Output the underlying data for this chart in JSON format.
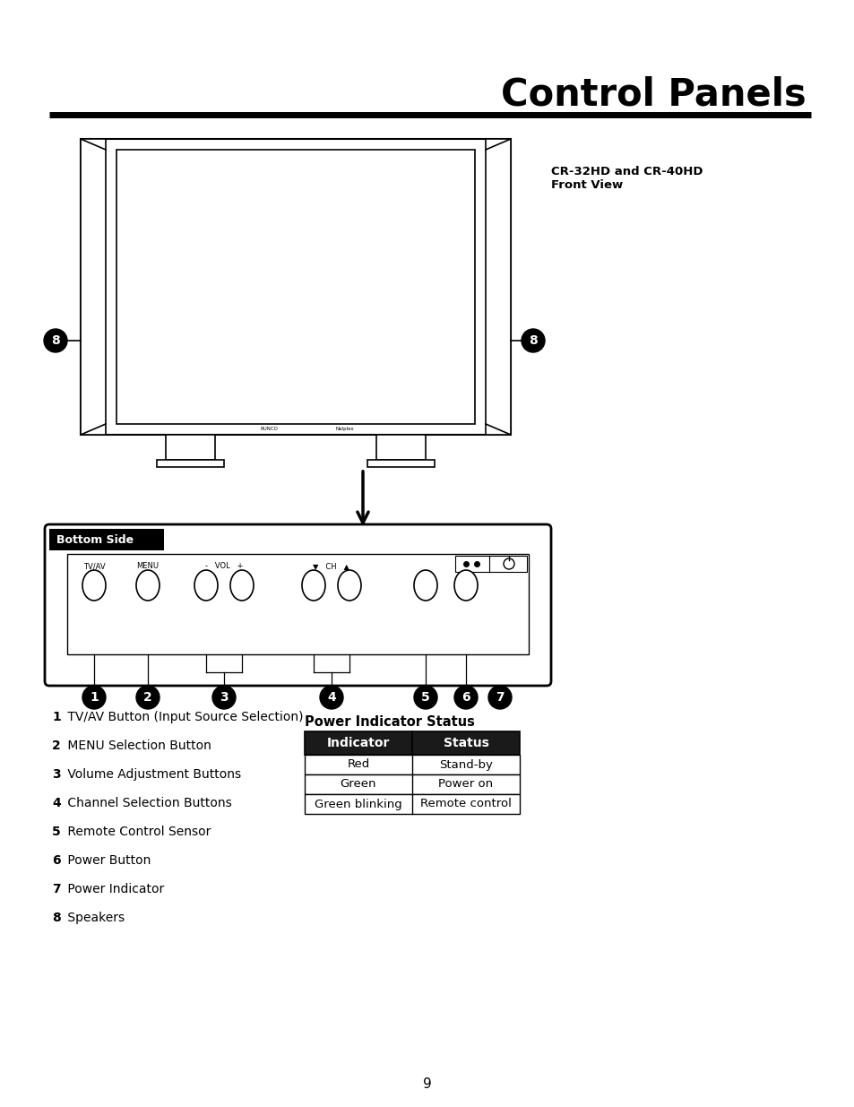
{
  "title": "Control Panels",
  "title_fontsize": 30,
  "title_fontweight": "bold",
  "page_number": "9",
  "bg_color": "#ffffff",
  "line_color": "#000000",
  "sidebar_label": "CR-32HD and CR-40HD\nFront View",
  "bottom_side_label": "Bottom Side",
  "numbered_items": [
    {
      "bold": "1",
      "text": " TV/AV Button (Input Source Selection)"
    },
    {
      "bold": "2",
      "text": " MENU Selection Button"
    },
    {
      "bold": "3",
      "text": " Volume Adjustment Buttons"
    },
    {
      "bold": "4",
      "text": " Channel Selection Buttons"
    },
    {
      "bold": "5",
      "text": " Remote Control Sensor"
    },
    {
      "bold": "6",
      "text": " Power Button"
    },
    {
      "bold": "7",
      "text": " Power Indicator"
    },
    {
      "bold": "8",
      "text": " Speakers"
    }
  ],
  "power_indicator_title": "Power Indicator Status",
  "table_header": [
    "Indicator",
    "Status"
  ],
  "table_rows": [
    [
      "Red\nGreen\nGreen blinking",
      "Stand-by\nPower on\nRemote control"
    ]
  ],
  "table_header_bg": "#1a1a1a",
  "table_header_fg": "#ffffff",
  "button_labels": [
    "TV/AV",
    "MENU",
    "-",
    "VOL",
    "+",
    "▼",
    "CH",
    "▲",
    "⏻"
  ]
}
